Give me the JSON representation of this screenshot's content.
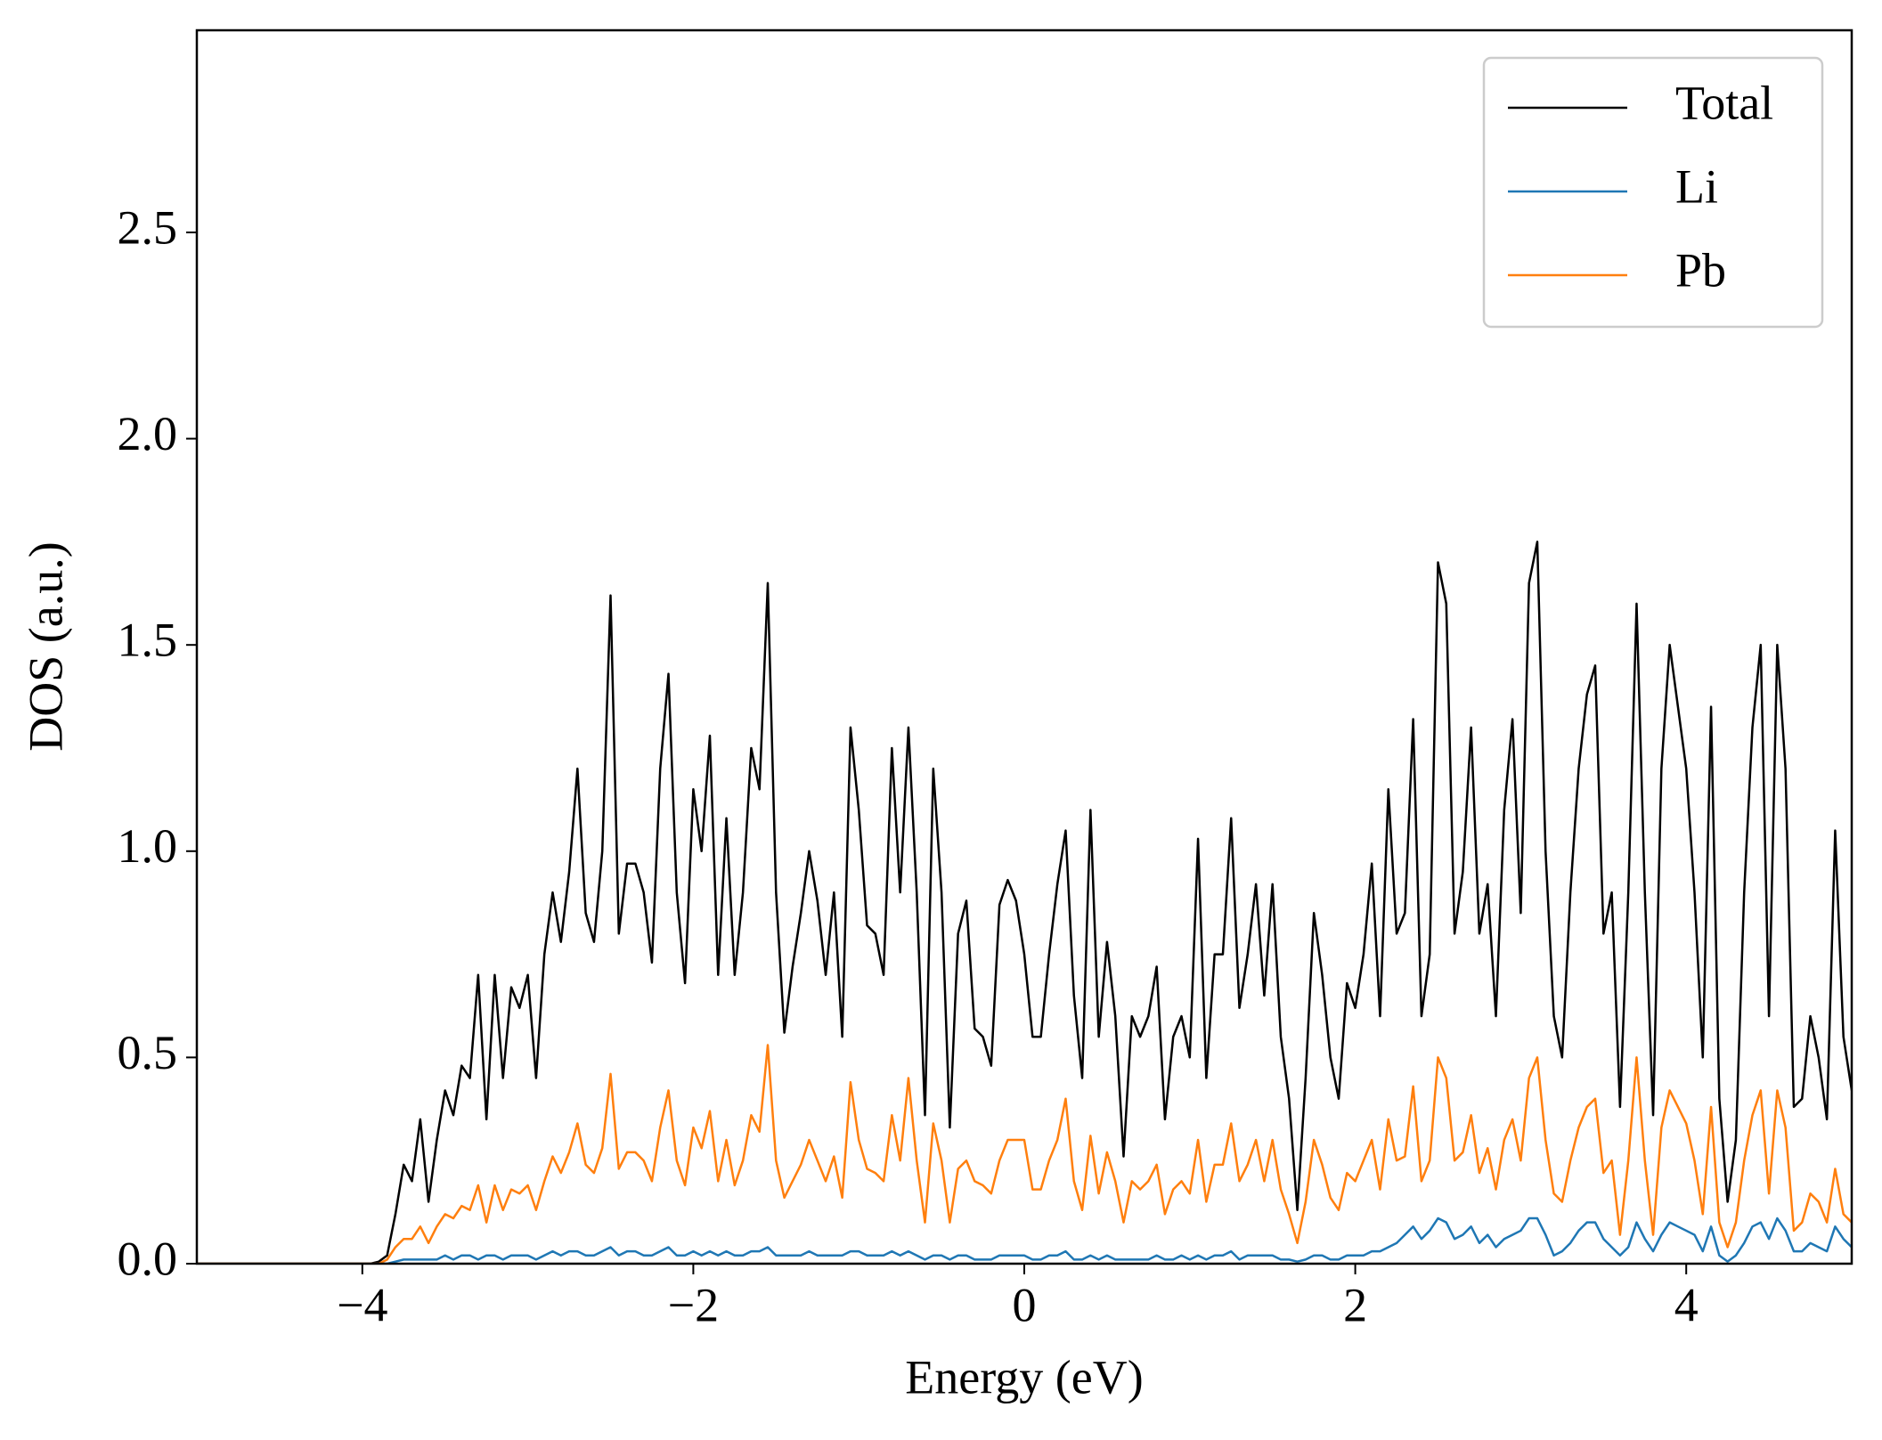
{
  "chart_data": {
    "type": "line",
    "xlabel": "Energy (eV)",
    "ylabel": "DOS (a.u.)",
    "xlim": [
      -5,
      5
    ],
    "ylim": [
      0,
      2.99
    ],
    "xticks": [
      {
        "value": -4,
        "label": "−4"
      },
      {
        "value": -2,
        "label": "−2"
      },
      0,
      2,
      4
    ],
    "yticks": [
      {
        "value": 0,
        "label": "0.0"
      },
      0.5,
      {
        "value": 1,
        "label": "1.0"
      },
      1.5,
      {
        "value": 2,
        "label": "2.0"
      },
      2.5
    ],
    "grid": false,
    "legend": "upper right",
    "x": [
      -5,
      -4.95,
      -4.9,
      -4.85,
      -4.8,
      -4.75,
      -4.7,
      -4.65,
      -4.6,
      -4.55,
      -4.5,
      -4.45,
      -4.4,
      -4.35,
      -4.3,
      -4.25,
      -4.2,
      -4.15,
      -4.1,
      -4.05,
      -4,
      -3.95,
      -3.9,
      -3.85,
      -3.8,
      -3.75,
      -3.7,
      -3.65,
      -3.6,
      -3.55,
      -3.5,
      -3.45,
      -3.4,
      -3.35,
      -3.3,
      -3.25,
      -3.2,
      -3.15,
      -3.1,
      -3.05,
      -3,
      -2.95,
      -2.9,
      -2.85,
      -2.8,
      -2.75,
      -2.7,
      -2.65,
      -2.6,
      -2.55,
      -2.5,
      -2.45,
      -2.4,
      -2.35,
      -2.3,
      -2.25,
      -2.2,
      -2.15,
      -2.1,
      -2.05,
      -2,
      -1.95,
      -1.9,
      -1.85,
      -1.8,
      -1.75,
      -1.7,
      -1.65,
      -1.6,
      -1.55,
      -1.5,
      -1.45,
      -1.4,
      -1.35,
      -1.3,
      -1.25,
      -1.2,
      -1.15,
      -1.1,
      -1.05,
      -1,
      -0.95,
      -0.9,
      -0.85,
      -0.8,
      -0.75,
      -0.7,
      -0.65,
      -0.6,
      -0.55,
      -0.5,
      -0.45,
      -0.4,
      -0.35,
      -0.3,
      -0.25,
      -0.2,
      -0.15,
      -0.1,
      -0.05,
      0,
      0.05,
      0.1,
      0.15,
      0.2,
      0.25,
      0.3,
      0.35,
      0.4,
      0.45,
      0.5,
      0.55,
      0.6,
      0.65,
      0.7,
      0.75,
      0.8,
      0.85,
      0.9,
      0.95,
      1,
      1.05,
      1.1,
      1.15,
      1.2,
      1.25,
      1.3,
      1.35,
      1.4,
      1.45,
      1.5,
      1.55,
      1.6,
      1.65,
      1.7,
      1.75,
      1.8,
      1.85,
      1.9,
      1.95,
      2,
      2.05,
      2.1,
      2.15,
      2.2,
      2.25,
      2.3,
      2.35,
      2.4,
      2.45,
      2.5,
      2.55,
      2.6,
      2.65,
      2.7,
      2.75,
      2.8,
      2.85,
      2.9,
      2.95,
      3,
      3.05,
      3.1,
      3.15,
      3.2,
      3.25,
      3.3,
      3.35,
      3.4,
      3.45,
      3.5,
      3.55,
      3.6,
      3.65,
      3.7,
      3.75,
      3.8,
      3.85,
      3.9,
      3.95,
      4,
      4.05,
      4.1,
      4.15,
      4.2,
      4.25,
      4.3,
      4.35,
      4.4,
      4.45,
      4.5,
      4.55,
      4.6,
      4.65,
      4.7,
      4.75,
      4.8,
      4.85,
      4.9,
      4.95,
      5
    ],
    "series": [
      {
        "name": "Total",
        "color": "#000000",
        "values": [
          0,
          0,
          0,
          0,
          0,
          0,
          0,
          0,
          0,
          0,
          0,
          0,
          0,
          0,
          0,
          0,
          0,
          0,
          0,
          0,
          0,
          0,
          0.005,
          0.02,
          0.12,
          0.24,
          0.2,
          0.35,
          0.15,
          0.3,
          0.42,
          0.36,
          0.48,
          0.45,
          0.7,
          0.35,
          0.7,
          0.45,
          0.67,
          0.62,
          0.7,
          0.45,
          0.75,
          0.9,
          0.78,
          0.95,
          1.2,
          0.85,
          0.78,
          1.0,
          1.62,
          0.8,
          0.97,
          0.97,
          0.9,
          0.73,
          1.2,
          1.43,
          0.9,
          0.68,
          1.15,
          1.0,
          1.28,
          0.7,
          1.08,
          0.7,
          0.9,
          1.25,
          1.15,
          1.65,
          0.9,
          0.56,
          0.72,
          0.85,
          1.0,
          0.88,
          0.7,
          0.9,
          0.55,
          1.3,
          1.1,
          0.82,
          0.8,
          0.7,
          1.25,
          0.9,
          1.3,
          0.9,
          0.36,
          1.2,
          0.9,
          0.33,
          0.8,
          0.88,
          0.57,
          0.55,
          0.48,
          0.87,
          0.93,
          0.88,
          0.75,
          0.55,
          0.55,
          0.75,
          0.92,
          1.05,
          0.65,
          0.45,
          1.1,
          0.55,
          0.78,
          0.6,
          0.26,
          0.6,
          0.55,
          0.6,
          0.72,
          0.35,
          0.55,
          0.6,
          0.5,
          1.03,
          0.45,
          0.75,
          0.75,
          1.08,
          0.62,
          0.75,
          0.92,
          0.65,
          0.92,
          0.55,
          0.4,
          0.13,
          0.45,
          0.85,
          0.7,
          0.5,
          0.4,
          0.68,
          0.62,
          0.75,
          0.97,
          0.6,
          1.15,
          0.8,
          0.85,
          1.32,
          0.6,
          0.75,
          1.7,
          1.6,
          0.8,
          0.95,
          1.3,
          0.8,
          0.92,
          0.6,
          1.1,
          1.32,
          0.85,
          1.65,
          1.75,
          1.0,
          0.6,
          0.5,
          0.9,
          1.2,
          1.38,
          1.45,
          0.8,
          0.9,
          0.38,
          0.9,
          1.6,
          0.9,
          0.36,
          1.2,
          1.5,
          1.35,
          1.2,
          0.9,
          0.5,
          1.35,
          0.4,
          0.15,
          0.3,
          0.9,
          1.3,
          1.5,
          0.6,
          1.5,
          1.2,
          0.38,
          0.4,
          0.6,
          0.5,
          0.35,
          1.05,
          0.55,
          0.42
        ]
      },
      {
        "name": "Li",
        "color": "#1f77b4",
        "values": [
          0,
          0,
          0,
          0,
          0,
          0,
          0,
          0,
          0,
          0,
          0,
          0,
          0,
          0,
          0,
          0,
          0,
          0,
          0,
          0,
          0,
          0,
          0,
          0,
          0.005,
          0.01,
          0.01,
          0.01,
          0.01,
          0.01,
          0.02,
          0.01,
          0.02,
          0.02,
          0.01,
          0.02,
          0.02,
          0.01,
          0.02,
          0.02,
          0.02,
          0.01,
          0.02,
          0.03,
          0.02,
          0.03,
          0.03,
          0.02,
          0.02,
          0.03,
          0.04,
          0.02,
          0.03,
          0.03,
          0.02,
          0.02,
          0.03,
          0.04,
          0.02,
          0.02,
          0.03,
          0.02,
          0.03,
          0.02,
          0.03,
          0.02,
          0.02,
          0.03,
          0.03,
          0.04,
          0.02,
          0.02,
          0.02,
          0.02,
          0.03,
          0.02,
          0.02,
          0.02,
          0.02,
          0.03,
          0.03,
          0.02,
          0.02,
          0.02,
          0.03,
          0.02,
          0.03,
          0.02,
          0.01,
          0.02,
          0.02,
          0.01,
          0.02,
          0.02,
          0.01,
          0.01,
          0.01,
          0.02,
          0.02,
          0.02,
          0.02,
          0.01,
          0.01,
          0.02,
          0.02,
          0.03,
          0.01,
          0.01,
          0.02,
          0.01,
          0.02,
          0.01,
          0.01,
          0.01,
          0.01,
          0.01,
          0.02,
          0.01,
          0.01,
          0.02,
          0.01,
          0.02,
          0.01,
          0.02,
          0.02,
          0.03,
          0.01,
          0.02,
          0.02,
          0.02,
          0.02,
          0.01,
          0.01,
          0.005,
          0.01,
          0.02,
          0.02,
          0.01,
          0.01,
          0.02,
          0.02,
          0.02,
          0.03,
          0.03,
          0.04,
          0.05,
          0.07,
          0.09,
          0.06,
          0.08,
          0.11,
          0.1,
          0.06,
          0.07,
          0.09,
          0.05,
          0.07,
          0.04,
          0.06,
          0.07,
          0.08,
          0.11,
          0.11,
          0.07,
          0.02,
          0.03,
          0.05,
          0.08,
          0.1,
          0.1,
          0.06,
          0.04,
          0.02,
          0.04,
          0.1,
          0.06,
          0.03,
          0.07,
          0.1,
          0.09,
          0.08,
          0.07,
          0.03,
          0.09,
          0.02,
          0.005,
          0.02,
          0.05,
          0.09,
          0.1,
          0.06,
          0.11,
          0.08,
          0.03,
          0.03,
          0.05,
          0.04,
          0.03,
          0.09,
          0.06,
          0.04
        ]
      },
      {
        "name": "Pb",
        "color": "#ff7f0e",
        "values": [
          0,
          0,
          0,
          0,
          0,
          0,
          0,
          0,
          0,
          0,
          0,
          0,
          0,
          0,
          0,
          0,
          0,
          0,
          0,
          0,
          0,
          0,
          0,
          0.01,
          0.04,
          0.06,
          0.06,
          0.09,
          0.05,
          0.09,
          0.12,
          0.11,
          0.14,
          0.13,
          0.19,
          0.1,
          0.19,
          0.13,
          0.18,
          0.17,
          0.19,
          0.13,
          0.2,
          0.26,
          0.22,
          0.27,
          0.34,
          0.24,
          0.22,
          0.28,
          0.46,
          0.23,
          0.27,
          0.27,
          0.25,
          0.2,
          0.33,
          0.42,
          0.25,
          0.19,
          0.33,
          0.28,
          0.37,
          0.2,
          0.3,
          0.19,
          0.25,
          0.36,
          0.32,
          0.53,
          0.25,
          0.16,
          0.2,
          0.24,
          0.3,
          0.25,
          0.2,
          0.26,
          0.16,
          0.44,
          0.3,
          0.23,
          0.22,
          0.2,
          0.36,
          0.25,
          0.45,
          0.25,
          0.1,
          0.34,
          0.25,
          0.1,
          0.23,
          0.25,
          0.2,
          0.19,
          0.17,
          0.25,
          0.3,
          0.3,
          0.3,
          0.18,
          0.18,
          0.25,
          0.3,
          0.4,
          0.2,
          0.13,
          0.31,
          0.17,
          0.27,
          0.2,
          0.1,
          0.2,
          0.18,
          0.2,
          0.24,
          0.12,
          0.18,
          0.2,
          0.17,
          0.3,
          0.15,
          0.24,
          0.24,
          0.34,
          0.2,
          0.24,
          0.3,
          0.2,
          0.3,
          0.18,
          0.12,
          0.05,
          0.15,
          0.3,
          0.24,
          0.16,
          0.13,
          0.22,
          0.2,
          0.25,
          0.3,
          0.18,
          0.35,
          0.25,
          0.26,
          0.43,
          0.2,
          0.25,
          0.5,
          0.45,
          0.25,
          0.27,
          0.36,
          0.22,
          0.28,
          0.18,
          0.3,
          0.35,
          0.25,
          0.45,
          0.5,
          0.3,
          0.17,
          0.15,
          0.25,
          0.33,
          0.38,
          0.4,
          0.22,
          0.25,
          0.07,
          0.25,
          0.5,
          0.25,
          0.07,
          0.33,
          0.42,
          0.38,
          0.34,
          0.25,
          0.12,
          0.38,
          0.1,
          0.04,
          0.1,
          0.25,
          0.36,
          0.42,
          0.17,
          0.42,
          0.33,
          0.08,
          0.1,
          0.17,
          0.15,
          0.1,
          0.23,
          0.12,
          0.1
        ]
      }
    ]
  }
}
